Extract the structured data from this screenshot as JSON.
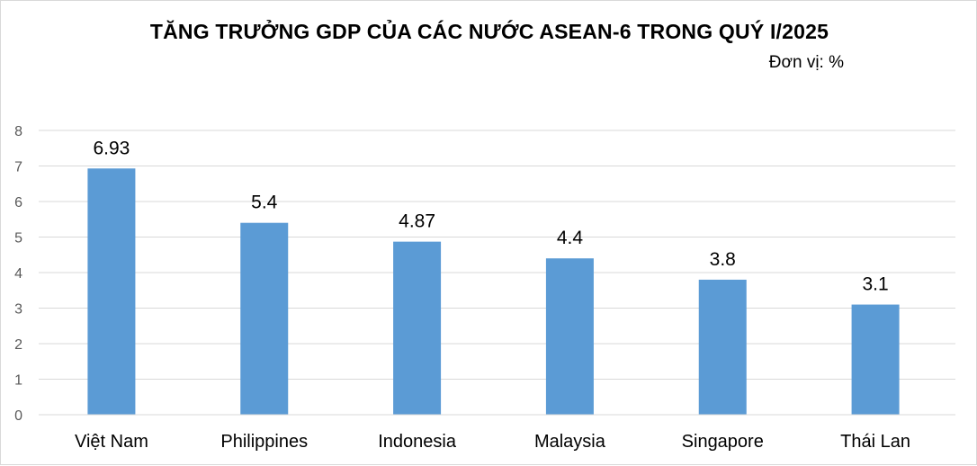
{
  "chart_data": {
    "type": "bar",
    "title": "TĂNG TRƯỞNG GDP CỦA CÁC NƯỚC ASEAN-6 TRONG QUÝ I/2025",
    "unit_label": "Đơn vị: %",
    "categories": [
      "Việt Nam",
      "Philippines",
      "Indonesia",
      "Malaysia",
      "Singapore",
      "Thái Lan"
    ],
    "values": [
      6.93,
      5.4,
      4.87,
      4.4,
      3.8,
      3.1
    ],
    "data_labels": [
      "6.93",
      "5.4",
      "4.87",
      "4.4",
      "3.8",
      "3.1"
    ],
    "ylim": [
      0,
      8
    ],
    "yticks": [
      "0",
      "1",
      "2",
      "3",
      "4",
      "5",
      "6",
      "7",
      "8"
    ],
    "xlabel": "",
    "ylabel": "",
    "grid": true,
    "legend": "none",
    "bar_color": "#5b9bd5",
    "grid_color": "#d9d9d9"
  }
}
